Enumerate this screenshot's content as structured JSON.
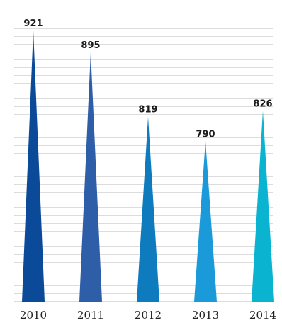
{
  "chart_data": {
    "type": "bar",
    "title": "",
    "xlabel": "",
    "ylabel": "",
    "categories": [
      "2010",
      "2011",
      "2012",
      "2013",
      "2014"
    ],
    "values": [
      921,
      895,
      819,
      790,
      826
    ],
    "data_labels": [
      "921",
      "895",
      "819",
      "790",
      "826"
    ],
    "ylim": [
      600,
      921
    ],
    "grid": true,
    "bar_shape": "triangle",
    "colors": [
      "#0b4a98",
      "#2f5ea8",
      "#0e7bbf",
      "#1a9ad8",
      "#0ab3d0"
    ]
  }
}
